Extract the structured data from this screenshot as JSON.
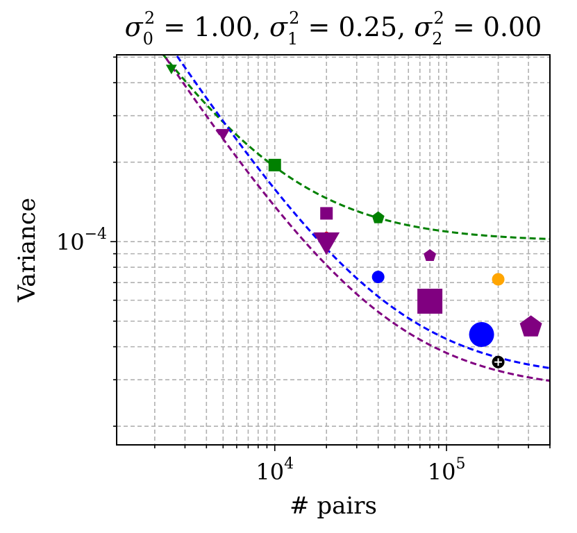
{
  "chart_data": {
    "type": "scatter",
    "title": "σ₀² = 1.00, σ₁² = 0.25, σ₂² = 0.00",
    "title_parts": [
      "σ",
      "0",
      "2",
      " = 1.00, ",
      "σ",
      "1",
      "2",
      " = 0.25, ",
      "σ",
      "2",
      "2",
      " = 0.00"
    ],
    "xlabel": "# pairs",
    "ylabel": "Variance",
    "xscale": "log",
    "yscale": "log",
    "xlim": [
      1200,
      400000
    ],
    "ylim": [
      1.7e-05,
      0.00051
    ],
    "grid": true,
    "x_ticks": [
      {
        "value": 10000,
        "base": "10",
        "exp": "4"
      },
      {
        "value": 100000,
        "base": "10",
        "exp": "5"
      }
    ],
    "y_ticks": [
      {
        "value": 0.0001,
        "base": "10",
        "exp": "−4"
      }
    ],
    "curves": [
      {
        "name": "green-fit",
        "color": "#008000",
        "x_start": 1500,
        "x_end": 400000,
        "a": 0.92,
        "b": 0.0001
      },
      {
        "name": "blue-fit",
        "color": "#0000ff",
        "x_start": 1500,
        "x_end": 400000,
        "a": 1.28,
        "b": 3e-05
      },
      {
        "name": "purple-fit",
        "color": "#800080",
        "x_start": 1500,
        "x_end": 400000,
        "a": 1.09,
        "b": 2.7e-05
      }
    ],
    "series": [
      {
        "name": "green",
        "color": "#008000",
        "points": [
          {
            "x": 2500,
            "y": 0.000455,
            "marker": "triangle-down",
            "size": 8
          },
          {
            "x": 10000,
            "y": 0.000195,
            "marker": "square",
            "size": 9
          },
          {
            "x": 40000,
            "y": 0.000123,
            "marker": "pentagon",
            "size": 9
          }
        ]
      },
      {
        "name": "blue",
        "color": "#0000ff",
        "points": [
          {
            "x": 40000,
            "y": 7.35e-05,
            "marker": "circle",
            "size": 9
          },
          {
            "x": 160000,
            "y": 4.45e-05,
            "marker": "circle",
            "size": 18
          }
        ]
      },
      {
        "name": "red",
        "color": "#ff0000",
        "points": [
          {
            "x": 20000,
            "y": 0.0001065,
            "marker": "circle",
            "size": 4
          }
        ]
      },
      {
        "name": "orange",
        "color": "#ffa500",
        "points": [
          {
            "x": 200000,
            "y": 7.2e-05,
            "marker": "circle",
            "size": 9
          }
        ]
      },
      {
        "name": "black",
        "color": "#000000",
        "points": [
          {
            "x": 200000,
            "y": 3.5e-05,
            "marker": "circle-plus",
            "size": 9
          }
        ]
      },
      {
        "name": "purple",
        "color": "#800080",
        "points": [
          {
            "x": 5000,
            "y": 0.000258,
            "marker": "triangle-down",
            "size": 10
          },
          {
            "x": 20000,
            "y": 0.000128,
            "marker": "square",
            "size": 9
          },
          {
            "x": 20000,
            "y": 0.0001015,
            "marker": "triangle-down",
            "size": 19
          },
          {
            "x": 80000,
            "y": 8.85e-05,
            "marker": "pentagon",
            "size": 9
          },
          {
            "x": 80000,
            "y": 5.95e-05,
            "marker": "square",
            "size": 18
          },
          {
            "x": 310000,
            "y": 4.75e-05,
            "marker": "pentagon",
            "size": 16
          }
        ]
      }
    ]
  }
}
